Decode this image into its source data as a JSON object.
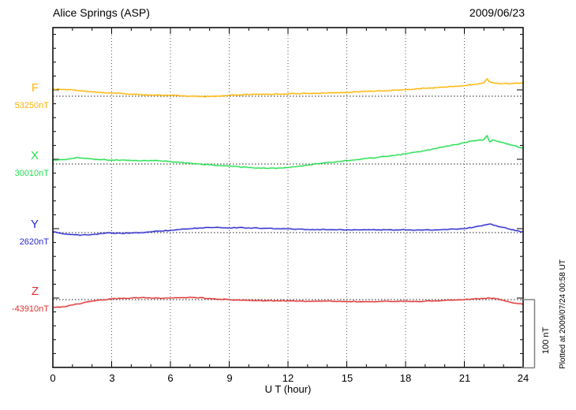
{
  "header": {
    "title": "Alice Springs (ASP)",
    "date": "2009/06/23"
  },
  "footer": {
    "note": "Plotted at 2009/07/24 00:58 UT"
  },
  "chart_data": {
    "type": "line",
    "title": "Alice Springs (ASP)",
    "date": "2009/06/23",
    "xlabel": "U T (hour)",
    "x_range": [
      0,
      24
    ],
    "x_ticks": [
      "0",
      "3",
      "6",
      "9",
      "12",
      "15",
      "18",
      "21",
      "24"
    ],
    "grid": "vertical dotted lines every 3 hours; dotted horizontal baseline per component",
    "legend_position": "left margin, one colored label per trace",
    "scale_bar": {
      "label": "100 nT",
      "nT": 100
    },
    "offsets_unit": "nT relative to component baseline value",
    "series": [
      {
        "name": "F",
        "baseline_label": "53250nT",
        "baseline_nT": 53250,
        "color": "#FFB400",
        "points": [
          [
            0,
            10.2
          ],
          [
            0.5,
            9.7
          ],
          [
            1,
            9.1
          ],
          [
            1.5,
            8.0
          ],
          [
            2,
            6.3
          ],
          [
            2.5,
            5.1
          ],
          [
            3,
            4.5
          ],
          [
            3.5,
            4.0
          ],
          [
            4,
            2.8
          ],
          [
            4.5,
            2.3
          ],
          [
            5,
            1.7
          ],
          [
            5.5,
            1.4
          ],
          [
            6,
            1.1
          ],
          [
            6.5,
            0.6
          ],
          [
            7,
            0.0
          ],
          [
            7.5,
            -0.6
          ],
          [
            8,
            -0.6
          ],
          [
            8.5,
            0.0
          ],
          [
            9,
            1.1
          ],
          [
            9.5,
            1.7
          ],
          [
            10,
            2.3
          ],
          [
            10.5,
            2.6
          ],
          [
            11,
            2.8
          ],
          [
            11.5,
            3.1
          ],
          [
            12,
            3.4
          ],
          [
            12.5,
            3.6
          ],
          [
            13,
            4.0
          ],
          [
            13.5,
            4.3
          ],
          [
            14,
            4.5
          ],
          [
            14.5,
            5.1
          ],
          [
            15,
            5.7
          ],
          [
            15.5,
            6.3
          ],
          [
            16,
            6.8
          ],
          [
            16.5,
            7.4
          ],
          [
            17,
            8.0
          ],
          [
            17.5,
            8.9
          ],
          [
            18,
            9.7
          ],
          [
            18.5,
            10.5
          ],
          [
            19,
            11.4
          ],
          [
            19.5,
            12.3
          ],
          [
            20,
            13.1
          ],
          [
            20.5,
            14.2
          ],
          [
            21,
            15.3
          ],
          [
            21.5,
            17.0
          ],
          [
            22,
            19.3
          ],
          [
            22.15,
            25.0
          ],
          [
            22.3,
            20.5
          ],
          [
            22.5,
            19.0
          ],
          [
            23,
            18.2
          ],
          [
            23.5,
            18.4
          ],
          [
            24,
            18.8
          ]
        ]
      },
      {
        "name": "X",
        "baseline_label": "30010nT",
        "baseline_nT": 30010,
        "color": "#22DE4E",
        "points": [
          [
            0,
            5.7
          ],
          [
            0.5,
            6.3
          ],
          [
            1,
            8.0
          ],
          [
            1.3,
            9.1
          ],
          [
            1.5,
            8.5
          ],
          [
            2,
            7.4
          ],
          [
            2.5,
            6.3
          ],
          [
            3,
            5.7
          ],
          [
            3.5,
            5.7
          ],
          [
            4,
            5.1
          ],
          [
            4.5,
            4.5
          ],
          [
            5,
            5.1
          ],
          [
            5.5,
            4.5
          ],
          [
            6,
            3.4
          ],
          [
            6.5,
            2.3
          ],
          [
            7,
            1.1
          ],
          [
            7.5,
            0.0
          ],
          [
            8,
            -1.1
          ],
          [
            8.5,
            -2.3
          ],
          [
            9,
            -2.8
          ],
          [
            9.5,
            -4.0
          ],
          [
            10,
            -5.1
          ],
          [
            10.5,
            -5.7
          ],
          [
            11,
            -6.3
          ],
          [
            11.5,
            -5.7
          ],
          [
            12,
            -5.1
          ],
          [
            12.5,
            -3.4
          ],
          [
            13,
            -1.7
          ],
          [
            13.5,
            0.6
          ],
          [
            14,
            2.3
          ],
          [
            14.5,
            3.4
          ],
          [
            15,
            5.1
          ],
          [
            15.5,
            6.3
          ],
          [
            16,
            8.0
          ],
          [
            16.5,
            9.1
          ],
          [
            17,
            10.8
          ],
          [
            17.5,
            12.5
          ],
          [
            18,
            14.8
          ],
          [
            18.5,
            17.0
          ],
          [
            19,
            19.3
          ],
          [
            19.5,
            22.2
          ],
          [
            20,
            25.0
          ],
          [
            20.5,
            27.8
          ],
          [
            21,
            30.7
          ],
          [
            21.5,
            33.5
          ],
          [
            21.8,
            34.5
          ],
          [
            22,
            35.2
          ],
          [
            22.15,
            40.9
          ],
          [
            22.3,
            31.8
          ],
          [
            22.45,
            34.7
          ],
          [
            22.6,
            33.5
          ],
          [
            23,
            30.7
          ],
          [
            23.5,
            26.7
          ],
          [
            24,
            22.7
          ]
        ]
      },
      {
        "name": "Y",
        "baseline_label": "2620nT",
        "baseline_nT": 2620,
        "color": "#2828CC",
        "points": [
          [
            0,
            1.1
          ],
          [
            0.5,
            -1.7
          ],
          [
            1,
            -2.8
          ],
          [
            1.5,
            -3.4
          ],
          [
            2,
            -2.8
          ],
          [
            2.5,
            -1.1
          ],
          [
            3,
            -0.6
          ],
          [
            3.5,
            -1.1
          ],
          [
            4,
            -0.6
          ],
          [
            4.5,
            0.0
          ],
          [
            5,
            1.1
          ],
          [
            5.5,
            2.3
          ],
          [
            6,
            3.4
          ],
          [
            6.5,
            4.5
          ],
          [
            7,
            5.7
          ],
          [
            7.5,
            6.8
          ],
          [
            8,
            7.4
          ],
          [
            8.5,
            7.4
          ],
          [
            9,
            6.8
          ],
          [
            9.5,
            7.4
          ],
          [
            10,
            6.8
          ],
          [
            10.5,
            6.3
          ],
          [
            11,
            6.3
          ],
          [
            11.5,
            5.7
          ],
          [
            12,
            5.7
          ],
          [
            12.5,
            5.1
          ],
          [
            13,
            4.5
          ],
          [
            13.5,
            4.5
          ],
          [
            14,
            4.0
          ],
          [
            14.5,
            4.0
          ],
          [
            15,
            4.0
          ],
          [
            15.5,
            4.0
          ],
          [
            16,
            4.0
          ],
          [
            16.5,
            3.7
          ],
          [
            17,
            4.0
          ],
          [
            17.5,
            3.7
          ],
          [
            18,
            4.0
          ],
          [
            18.5,
            3.4
          ],
          [
            19,
            4.0
          ],
          [
            19.5,
            4.0
          ],
          [
            20,
            4.5
          ],
          [
            20.5,
            5.1
          ],
          [
            21,
            5.7
          ],
          [
            21.5,
            8.0
          ],
          [
            22,
            10.8
          ],
          [
            22.3,
            12.5
          ],
          [
            22.6,
            10.2
          ],
          [
            23,
            7.4
          ],
          [
            23.3,
            5.1
          ],
          [
            23.6,
            2.8
          ],
          [
            24,
            1.1
          ]
        ]
      },
      {
        "name": "Z",
        "baseline_label": "-43910nT",
        "baseline_nT": -43910,
        "color": "#E03030",
        "points": [
          [
            0,
            -11.4
          ],
          [
            0.5,
            -10.2
          ],
          [
            1,
            -8.0
          ],
          [
            1.5,
            -5.1
          ],
          [
            2,
            -2.3
          ],
          [
            2.5,
            -0.6
          ],
          [
            3,
            1.1
          ],
          [
            3.5,
            1.7
          ],
          [
            4,
            2.3
          ],
          [
            4.5,
            2.8
          ],
          [
            5,
            2.3
          ],
          [
            5.5,
            1.7
          ],
          [
            6,
            2.3
          ],
          [
            6.5,
            2.8
          ],
          [
            7,
            3.4
          ],
          [
            7.5,
            2.8
          ],
          [
            8,
            1.7
          ],
          [
            8.5,
            0.6
          ],
          [
            9,
            0.0
          ],
          [
            9.5,
            -0.6
          ],
          [
            10,
            -1.1
          ],
          [
            10.5,
            -1.1
          ],
          [
            11,
            -1.7
          ],
          [
            11.5,
            -1.7
          ],
          [
            12,
            -1.7
          ],
          [
            12.5,
            -2.3
          ],
          [
            13,
            -2.3
          ],
          [
            14,
            -2.3
          ],
          [
            15,
            -2.8
          ],
          [
            16,
            -2.8
          ],
          [
            17,
            -2.3
          ],
          [
            18,
            -2.3
          ],
          [
            19,
            -2.3
          ],
          [
            19.5,
            -1.7
          ],
          [
            20,
            -1.1
          ],
          [
            20.5,
            -0.6
          ],
          [
            21,
            0.0
          ],
          [
            21.5,
            1.1
          ],
          [
            22,
            1.7
          ],
          [
            22.3,
            2.3
          ],
          [
            22.6,
            1.1
          ],
          [
            23,
            -1.1
          ],
          [
            23.3,
            -3.4
          ],
          [
            23.6,
            -5.1
          ],
          [
            24,
            -6.8
          ]
        ]
      }
    ]
  }
}
